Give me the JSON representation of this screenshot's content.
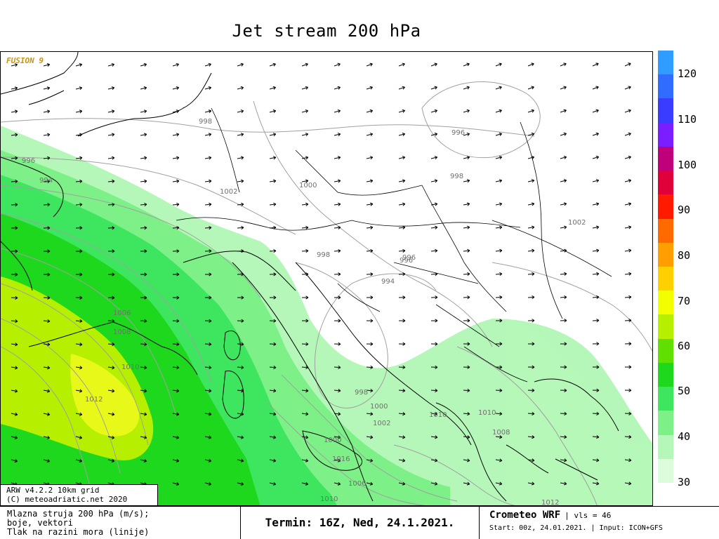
{
  "title": "Jet stream 200 hPa",
  "brand_tag": "FUSION 9",
  "model_info": {
    "line1": "ARW v4.2.2 10km grid",
    "line2": "(C) meteoadriatic.net 2020"
  },
  "legend": {
    "labels": [
      "120",
      "110",
      "100",
      "90",
      "80",
      "70",
      "60",
      "50",
      "40",
      "30"
    ],
    "colors": [
      "#2f9cff",
      "#2f6cff",
      "#3a3cff",
      "#7a1eff",
      "#c0007a",
      "#e0003a",
      "#ff1a00",
      "#ff6a00",
      "#ff9e00",
      "#ffd000",
      "#f2ff00",
      "#b6f000",
      "#5fe000",
      "#1ed81e",
      "#3ee660",
      "#7df088",
      "#b5f7b8",
      "#dcfcdc"
    ]
  },
  "isobars": [
    "998",
    "996",
    "994",
    "996",
    "1002",
    "1000",
    "998",
    "996",
    "994",
    "1002",
    "998",
    "996",
    "998",
    "1000",
    "1002",
    "1000",
    "1006",
    "1008",
    "1010",
    "1012",
    "1010",
    "1008",
    "1010",
    "1012",
    "1016",
    "1010",
    "1006"
  ],
  "footer": {
    "left_line1": "Mlazna struja 200 hPa (m/s);",
    "left_line2": "boje, vektori",
    "left_line3": "Tlak na razini mora (linije)",
    "termin": "Termin: 16Z, Ned, 24.1.2021.",
    "model_name": "Crometeo WRF",
    "vls": "| vls = 46",
    "run_info": "Start: 00z, 24.01.2021. | Input: ICON+GFS"
  },
  "map_colors": {
    "land_white": "#ffffff",
    "jet_light": "#b5f7b8",
    "jet_mid": "#7df088",
    "jet_green": "#3ee660",
    "jet_strong": "#1ed81e",
    "jet_yellowgreen": "#b6f000",
    "jet_yellow": "#e8f818"
  }
}
